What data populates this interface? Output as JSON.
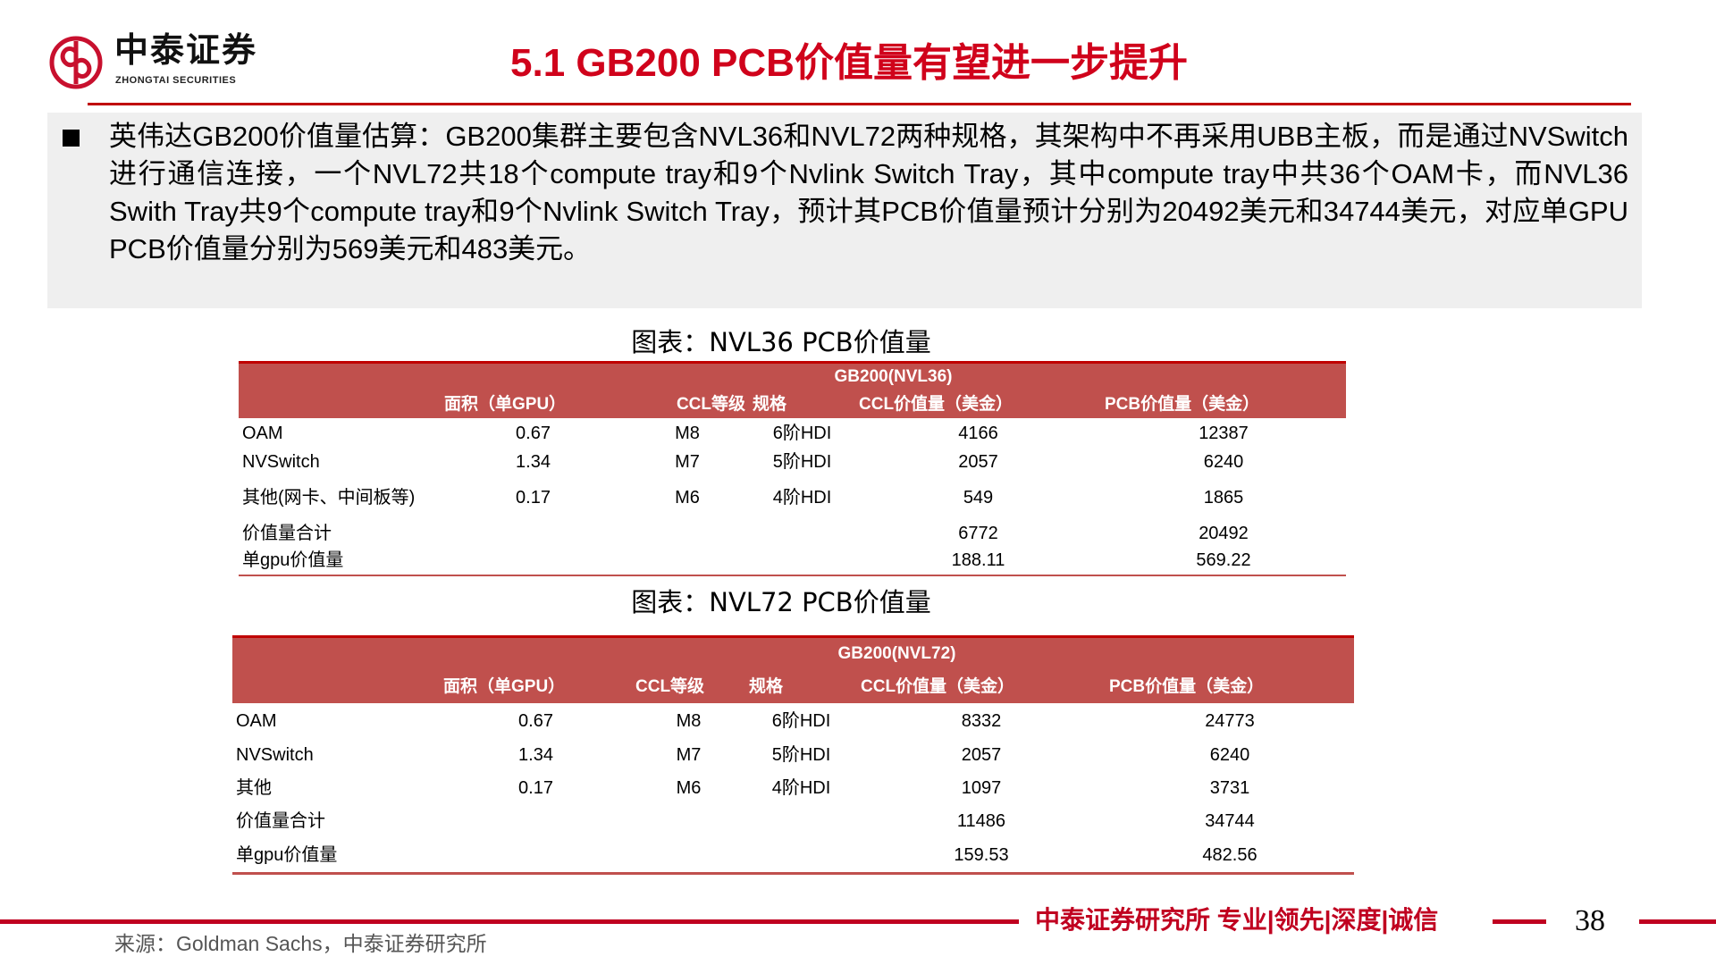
{
  "logo": {
    "cn": "中泰证券",
    "en": "ZHONGTAI SECURITIES"
  },
  "title": "5.1 GB200 PCB价值量有望进一步提升",
  "summary": "英伟达GB200价值量估算：GB200集群主要包含NVL36和NVL72两种规格，其架构中不再采用UBB主板，而是通过NVSwitch进行通信连接，一个NVL72共18个compute tray和9个Nvlink Switch Tray，其中compute tray中共36个OAM卡，而NVL36 Swith Tray共9个compute tray和9个Nvlink Switch Tray，预计其PCB价值量预计分别为20492美元和34744美元，对应单GPU PCB价值量分别为569美元和483美元。",
  "table1": {
    "caption": "图表：NVL36 PCB价值量",
    "group": "GB200(NVL36)",
    "headers": [
      "面积（单GPU）",
      "CCL等级",
      "规格",
      "CCL价值量（美金）",
      "PCB价值量（美金）"
    ],
    "rows": [
      [
        "OAM",
        "0.67",
        "M8",
        "6阶HDI",
        "4166",
        "12387"
      ],
      [
        "NVSwitch",
        "1.34",
        "M7",
        "5阶HDI",
        "2057",
        "6240"
      ],
      [
        "其他(网卡、中间板等)",
        "0.17",
        "M6",
        "4阶HDI",
        "549",
        "1865"
      ],
      [
        "价值量合计",
        "",
        "",
        "",
        "6772",
        "20492"
      ],
      [
        "单gpu价值量",
        "",
        "",
        "",
        "188.11",
        "569.22"
      ]
    ]
  },
  "table2": {
    "caption": "图表：NVL72 PCB价值量",
    "group": "GB200(NVL72)",
    "headers": [
      "面积（单GPU）",
      "CCL等级",
      "规格",
      "CCL价值量（美金）",
      "PCB价值量（美金）"
    ],
    "rows": [
      [
        "OAM",
        "0.67",
        "M8",
        "6阶HDI",
        "8332",
        "24773"
      ],
      [
        "NVSwitch",
        "1.34",
        "M7",
        "5阶HDI",
        "2057",
        "6240"
      ],
      [
        "其他",
        "0.17",
        "M6",
        "4阶HDI",
        "1097",
        "3731"
      ],
      [
        "价值量合计",
        "",
        "",
        "",
        "11486",
        "34744"
      ],
      [
        "单gpu价值量",
        "",
        "",
        "",
        "159.53",
        "482.56"
      ]
    ]
  },
  "source": "来源：Goldman Sachs，中泰证券研究所",
  "footer": {
    "slogan": "中泰证券研究所 专业|领先|深度|诚信",
    "page": "38"
  },
  "colors": {
    "brand_red": "#c00020",
    "title_red": "#d0021b",
    "table_header": "#c0504d"
  }
}
